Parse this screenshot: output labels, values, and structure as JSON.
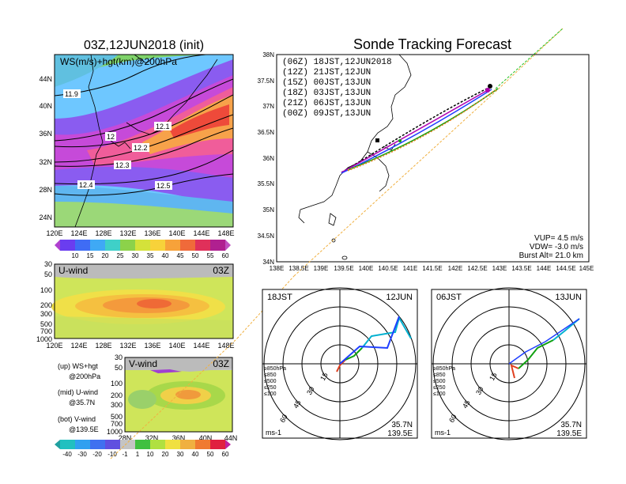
{
  "left_map": {
    "title": "03Z,12JUN2018 (init)",
    "field_label": "WS(m/s)+hgt(km)@200hPa",
    "lat_labels": [
      "44N",
      "40N",
      "36N",
      "32N",
      "28N",
      "24N"
    ],
    "lon_labels": [
      "120E",
      "124E",
      "128E",
      "132E",
      "136E",
      "140E",
      "144E",
      "148E"
    ],
    "contour_labels": [
      "11.9",
      "12",
      "12.1",
      "12.2",
      "12.3",
      "12.4",
      "12.5"
    ],
    "colorbar_labels": [
      "10",
      "15",
      "20",
      "25",
      "30",
      "35",
      "40",
      "45",
      "50",
      "55",
      "60"
    ]
  },
  "u_panel": {
    "title": "U-wind",
    "time": "03Z",
    "p_labels": [
      "30",
      "50",
      "100",
      "200",
      "300",
      "500",
      "700",
      "1000"
    ],
    "lon_labels": [
      "120E",
      "124E",
      "128E",
      "132E",
      "136E",
      "140E",
      "144E",
      "148E"
    ]
  },
  "v_panel": {
    "title": "V-wind",
    "time": "03Z",
    "p_labels": [
      "30",
      "50",
      "100",
      "200",
      "300",
      "500",
      "700",
      "1000"
    ],
    "lat_labels": [
      "28N",
      "32N",
      "36N",
      "40N",
      "44N"
    ]
  },
  "legend_notes": [
    {
      "line1": "(up) WS+hgt",
      "line2": "@200hPa"
    },
    {
      "line1": "(mid) U-wind",
      "line2": "@35.7N"
    },
    {
      "line1": "(bot) V-wind",
      "line2": "@139.5E"
    }
  ],
  "bottom_colorbar": [
    "-40",
    "-30",
    "-20",
    "-10",
    "-1",
    "1",
    "10",
    "20",
    "30",
    "40",
    "50",
    "60"
  ],
  "tracking": {
    "title": "Sonde Tracking Forecast",
    "lat_labels": [
      "38N",
      "37.5N",
      "37N",
      "36.5N",
      "36N",
      "35.5N",
      "35N",
      "34.5N",
      "34N"
    ],
    "lon_labels": [
      "138E",
      "138.5E",
      "139E",
      "139.5E",
      "140E",
      "140.5E",
      "141E",
      "141.5E",
      "142E",
      "142.5E",
      "143E",
      "143.5E",
      "144E",
      "144.5E",
      "145E"
    ],
    "runs": [
      {
        "label": "(06Z) 18JST,12JUN2018",
        "color": "#000000"
      },
      {
        "label": "(12Z) 21JST,12JUN",
        "color": "#b000b0"
      },
      {
        "label": "(15Z) 00JST,13JUN",
        "color": "#1f3fff"
      },
      {
        "label": "(18Z) 03JST,13JUN",
        "color": "#10a010"
      },
      {
        "label": "(21Z) 06JST,13JUN",
        "color": "#f0a030"
      },
      {
        "label": "(00Z) 09JST,13JUN",
        "color": "#e07a20"
      }
    ],
    "params": {
      "vup": "VUP= 4.5 m/s",
      "vdw": "VDW= -3.0 m/s",
      "burst": "Burst Alt= 21.0 km"
    }
  },
  "hodo_left": {
    "time_label": "18JST",
    "date_label": "12JUN",
    "ring_labels": [
      "15",
      "30",
      "45",
      "60"
    ],
    "levels": [
      "≥850hPa",
      "≤850",
      "≤500",
      "≤250",
      "≤100"
    ],
    "level_colors": [
      "#e04020",
      "#f0a030",
      "#10a010",
      "#00b0d0",
      "#1f3fff"
    ],
    "units": "ms-1",
    "loc_lat": "35.7N",
    "loc_lon": "139.5E"
  },
  "hodo_right": {
    "time_label": "06JST",
    "date_label": "13JUN",
    "ring_labels": [
      "15",
      "30",
      "45",
      "60"
    ],
    "levels": [
      "≥850hPa",
      "≤850",
      "≤500",
      "≤250",
      "≤100"
    ],
    "level_colors": [
      "#e04020",
      "#f0a030",
      "#10a010",
      "#00b0d0",
      "#1f3fff"
    ],
    "units": "ms-1",
    "loc_lat": "35.7N",
    "loc_lon": "139.5E"
  }
}
